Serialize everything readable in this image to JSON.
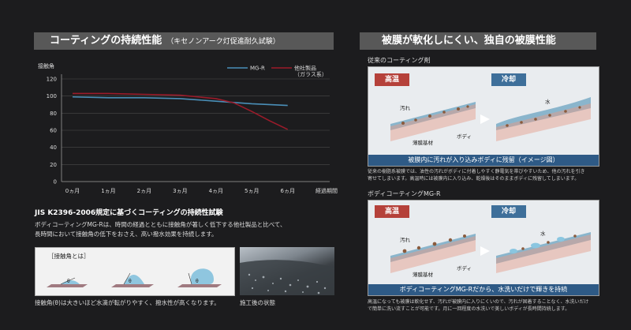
{
  "left_header": {
    "title": "コーティングの持続性能",
    "sub": "（キセノンアーク灯促進耐久試験）"
  },
  "chart_data": {
    "type": "line",
    "ylabel": "接触角",
    "xlabel": "経過期間",
    "categories": [
      "0ヵ月",
      "1ヵ月",
      "2ヵ月",
      "3ヵ月",
      "4ヵ月",
      "5ヵ月",
      "6ヵ月"
    ],
    "yticks": [
      120,
      100,
      80,
      60,
      40,
      20,
      0
    ],
    "ylim": [
      0,
      120
    ],
    "series": [
      {
        "name": "MG-R",
        "color": "#4a8fb8",
        "x": [
          0,
          1,
          2,
          3,
          4,
          5,
          6
        ],
        "values": [
          99,
          98,
          98,
          97,
          94,
          91,
          89
        ]
      },
      {
        "name": "他社製品\n（ガラス系）",
        "color": "#9b1b2a",
        "x": [
          0,
          1,
          2,
          3,
          4,
          4.5,
          5,
          5.5,
          6
        ],
        "values": [
          103,
          103,
          102,
          101,
          97,
          92,
          82,
          71,
          61
        ]
      }
    ],
    "legend_position": "top-right"
  },
  "jis": {
    "title": "JIS K2396-2006規定に基づくコーティングの持続性試験",
    "line1": "ボディコーティングMG-Rは、時間の経過とともに接触角が著しく低下する他社製品と比べて、",
    "line2": "長時間において接触角の低下をおさえ、高い撥水効果を持続します。"
  },
  "contact_angle": {
    "title": "［接触角とは］",
    "theta": "θ",
    "note": "接触角(θ)は大きいほど水滴が転がりやすく、撥水性が高くなります。"
  },
  "photo_caption": "施工後の状態",
  "right_header": {
    "title": "被膜が軟化しにくい、独自の被膜性能"
  },
  "conventional": {
    "label": "従来のコーティング剤",
    "high": "高温",
    "cool": "冷却",
    "dirt": "汚れ",
    "base": "薄膜基材",
    "body": "ボディ",
    "water": "水",
    "caption": "被膜内に汚れが入り込みボディに残留（イメージ図）",
    "note1": "従来の樹脂系被膜では、油性の汚れがボディに付着しやすく静電気を帯びやすいため、他の汚れを引き",
    "note2": "寄せてしまいます。高温時には被膜内に入り込み、乾燥後はそのままボディに残留してしまいます。"
  },
  "mgr": {
    "label": "ボディコーティングMG-R",
    "high": "高温",
    "cool": "冷却",
    "dirt": "汚れ",
    "base": "薄膜基材",
    "body": "ボディ",
    "water": "水",
    "caption": "ボディコーティングMG-Rだから、水洗いだけで輝きを持続",
    "note1": "高温になっても被膜は軟化せず、汚れが被膜内に入りにくいので、汚れが固着することなく、水洗いだけ",
    "note2": "で簡単に洗い流すことが可能です。月に一回程度の水洗いで美しいボディが長時間持続します。"
  },
  "colors": {
    "high": "#b5413a",
    "cool": "#3e6f9a",
    "caption_bg": "#2e5a86"
  }
}
